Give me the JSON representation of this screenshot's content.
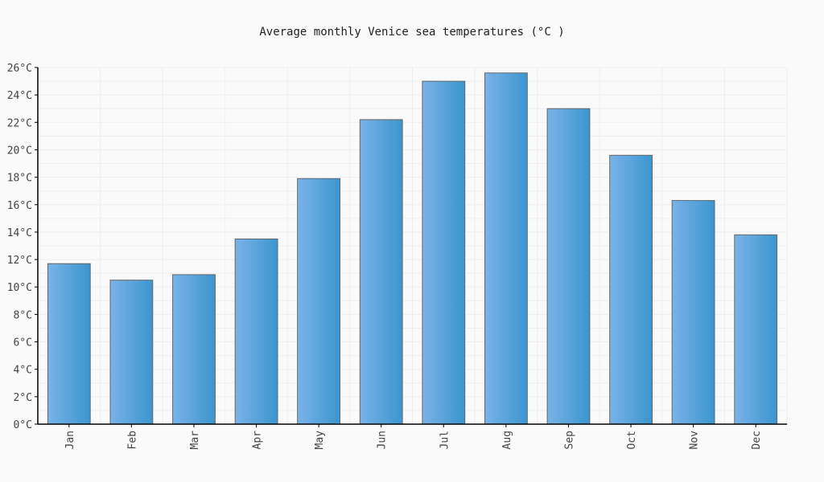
{
  "chart_data": {
    "type": "bar",
    "title": "Average monthly Venice sea temperatures (°C )",
    "xlabel": "",
    "ylabel": "",
    "categories": [
      "Jan",
      "Feb",
      "Mar",
      "Apr",
      "May",
      "Jun",
      "Jul",
      "Aug",
      "Sep",
      "Oct",
      "Nov",
      "Dec"
    ],
    "values": [
      11.7,
      10.5,
      10.9,
      13.5,
      17.9,
      22.2,
      25.0,
      25.6,
      23.0,
      19.6,
      16.3,
      13.8
    ],
    "ylim": [
      0,
      26
    ],
    "yticks": [
      0,
      2,
      4,
      6,
      8,
      10,
      12,
      14,
      16,
      18,
      20,
      22,
      24,
      26
    ],
    "ytick_suffix": "°C",
    "grid": true,
    "legend": "none",
    "colors": {
      "bar_light": "#7ab3e8",
      "bar_dark": "#3b95cf",
      "bar_stroke": "#666666",
      "grid": "#eeeeee",
      "axis": "#000000",
      "tick_text": "#444444"
    }
  }
}
